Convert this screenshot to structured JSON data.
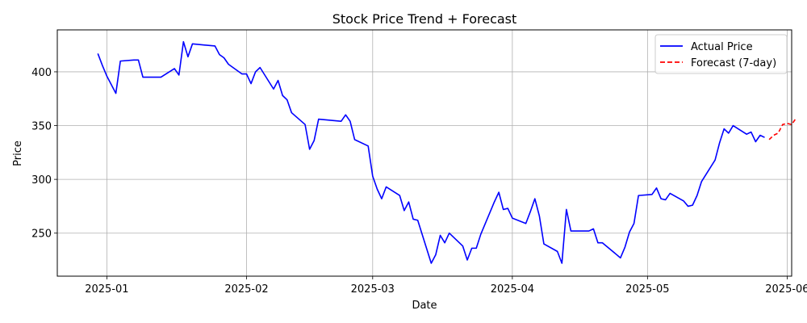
{
  "chart_data": {
    "type": "line",
    "title": "Stock Price Trend + Forecast",
    "xlabel": "Date",
    "ylabel": "Price",
    "x_ticks": [
      "2025-01",
      "2025-02",
      "2025-03",
      "2025-04",
      "2025-05",
      "2025-06"
    ],
    "y_ticks": [
      250,
      300,
      350,
      400
    ],
    "xlim": [
      "2024-12-21",
      "2025-06-02"
    ],
    "ylim": [
      210,
      439
    ],
    "grid": true,
    "legend_position": "top-right",
    "series": [
      {
        "name": "Actual Price",
        "color": "#0000ff",
        "style": "solid",
        "points": [
          [
            "2024-12-30",
            417
          ],
          [
            "2024-12-31",
            406
          ],
          [
            "2025-01-01",
            396
          ],
          [
            "2025-01-03",
            380
          ],
          [
            "2025-01-04",
            410
          ],
          [
            "2025-01-07",
            411
          ],
          [
            "2025-01-08",
            411
          ],
          [
            "2025-01-09",
            395
          ],
          [
            "2025-01-10",
            395
          ],
          [
            "2025-01-13",
            395
          ],
          [
            "2025-01-16",
            403
          ],
          [
            "2025-01-17",
            397
          ],
          [
            "2025-01-18",
            428
          ],
          [
            "2025-01-19",
            414
          ],
          [
            "2025-01-20",
            426
          ],
          [
            "2025-01-25",
            424
          ],
          [
            "2025-01-26",
            416
          ],
          [
            "2025-01-27",
            413
          ],
          [
            "2025-01-28",
            407
          ],
          [
            "2025-01-31",
            398
          ],
          [
            "2025-02-01",
            398
          ],
          [
            "2025-02-02",
            389
          ],
          [
            "2025-02-03",
            400
          ],
          [
            "2025-02-04",
            404
          ],
          [
            "2025-02-07",
            384
          ],
          [
            "2025-02-08",
            392
          ],
          [
            "2025-02-09",
            378
          ],
          [
            "2025-02-10",
            374
          ],
          [
            "2025-02-11",
            362
          ],
          [
            "2025-02-14",
            351
          ],
          [
            "2025-02-15",
            328
          ],
          [
            "2025-02-16",
            336
          ],
          [
            "2025-02-17",
            356
          ],
          [
            "2025-02-22",
            354
          ],
          [
            "2025-02-23",
            360
          ],
          [
            "2025-02-24",
            354
          ],
          [
            "2025-02-25",
            337
          ],
          [
            "2025-02-28",
            331
          ],
          [
            "2025-03-01",
            303
          ],
          [
            "2025-03-02",
            291
          ],
          [
            "2025-03-03",
            282
          ],
          [
            "2025-03-04",
            293
          ],
          [
            "2025-03-07",
            285
          ],
          [
            "2025-03-08",
            271
          ],
          [
            "2025-03-09",
            279
          ],
          [
            "2025-03-10",
            263
          ],
          [
            "2025-03-11",
            262
          ],
          [
            "2025-03-14",
            222
          ],
          [
            "2025-03-15",
            230
          ],
          [
            "2025-03-16",
            248
          ],
          [
            "2025-03-17",
            241
          ],
          [
            "2025-03-18",
            250
          ],
          [
            "2025-03-21",
            238
          ],
          [
            "2025-03-22",
            225
          ],
          [
            "2025-03-23",
            236
          ],
          [
            "2025-03-24",
            236
          ],
          [
            "2025-03-25",
            249
          ],
          [
            "2025-03-28",
            279
          ],
          [
            "2025-03-29",
            288
          ],
          [
            "2025-03-30",
            272
          ],
          [
            "2025-03-31",
            273
          ],
          [
            "2025-04-01",
            264
          ],
          [
            "2025-04-04",
            259
          ],
          [
            "2025-04-05",
            270
          ],
          [
            "2025-04-06",
            282
          ],
          [
            "2025-04-07",
            266
          ],
          [
            "2025-04-08",
            240
          ],
          [
            "2025-04-11",
            233
          ],
          [
            "2025-04-12",
            222
          ],
          [
            "2025-04-13",
            272
          ],
          [
            "2025-04-14",
            252
          ],
          [
            "2025-04-18",
            252
          ],
          [
            "2025-04-19",
            254
          ],
          [
            "2025-04-20",
            241
          ],
          [
            "2025-04-21",
            241
          ],
          [
            "2025-04-25",
            227
          ],
          [
            "2025-04-26",
            237
          ],
          [
            "2025-04-27",
            251
          ],
          [
            "2025-04-28",
            259
          ],
          [
            "2025-04-29",
            285
          ],
          [
            "2025-05-02",
            286
          ],
          [
            "2025-05-03",
            292
          ],
          [
            "2025-05-04",
            282
          ],
          [
            "2025-05-05",
            281
          ],
          [
            "2025-05-06",
            287
          ],
          [
            "2025-05-09",
            280
          ],
          [
            "2025-05-10",
            275
          ],
          [
            "2025-05-11",
            276
          ],
          [
            "2025-05-12",
            285
          ],
          [
            "2025-05-13",
            298
          ],
          [
            "2025-05-16",
            318
          ],
          [
            "2025-05-17",
            334
          ],
          [
            "2025-05-18",
            347
          ],
          [
            "2025-05-19",
            343
          ],
          [
            "2025-05-20",
            350
          ],
          [
            "2025-05-23",
            342
          ],
          [
            "2025-05-24",
            344
          ],
          [
            "2025-05-25",
            335
          ],
          [
            "2025-05-26",
            341
          ],
          [
            "2025-05-27",
            339
          ]
        ]
      },
      {
        "name": "Forecast (7-day)",
        "color": "#ff0000",
        "style": "dashed",
        "points": [
          [
            "2025-05-28",
            337
          ],
          [
            "2025-05-29",
            341
          ],
          [
            "2025-05-30",
            343
          ],
          [
            "2025-05-31",
            351
          ],
          [
            "2025-06-01",
            352
          ],
          [
            "2025-06-02",
            351
          ],
          [
            "2025-06-03",
            357
          ]
        ]
      }
    ]
  }
}
